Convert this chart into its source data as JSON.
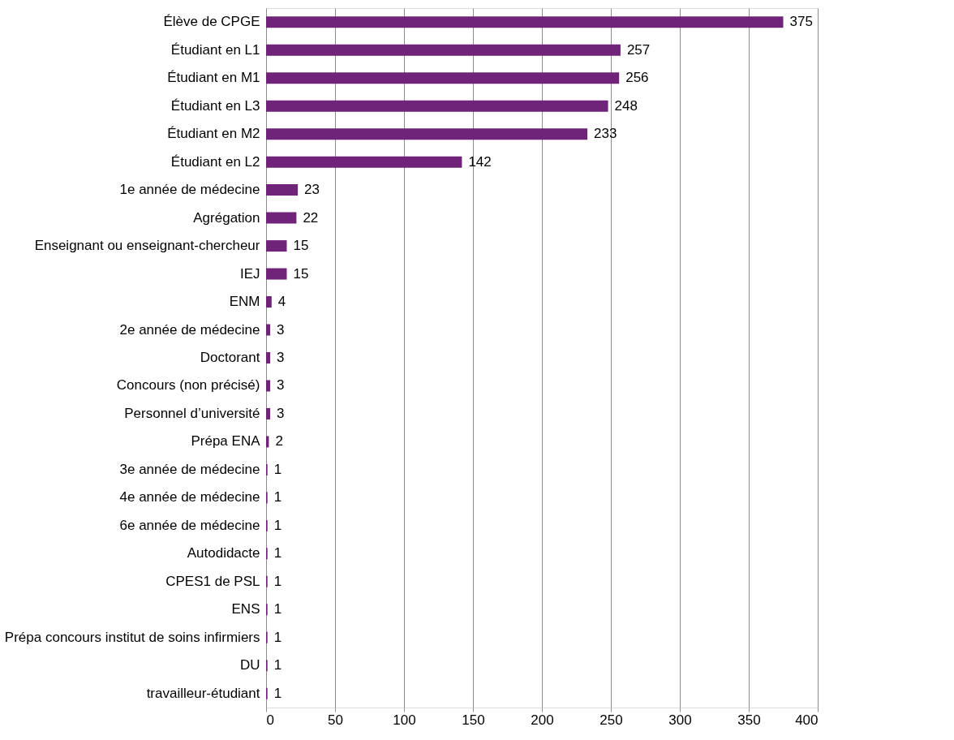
{
  "chart_data": {
    "type": "bar",
    "orientation": "horizontal",
    "categories": [
      "Élève de CPGE",
      "Étudiant en L1",
      "Étudiant en M1",
      "Étudiant en L3",
      "Étudiant en M2",
      "Étudiant en L2",
      "1e année de médecine",
      "Agrégation",
      "Enseignant ou enseignant-chercheur",
      "IEJ",
      "ENM",
      "2e année de médecine",
      "Doctorant",
      "Concours (non précisé)",
      "Personnel d’université",
      "Prépa ENA",
      "3e année de médecine",
      "4e année de médecine",
      "6e année de médecine",
      "Autodidacte",
      "CPES1 de PSL",
      "ENS",
      "Prépa concours institut de soins infirmiers",
      "DU",
      "travailleur-étudiant"
    ],
    "values": [
      375,
      257,
      256,
      248,
      233,
      142,
      23,
      22,
      15,
      15,
      4,
      3,
      3,
      3,
      3,
      2,
      1,
      1,
      1,
      1,
      1,
      1,
      1,
      1,
      1
    ],
    "color": "#6f2479",
    "xlim": [
      0,
      400
    ],
    "xticks": [
      0,
      50,
      100,
      150,
      200,
      250,
      300,
      350,
      400
    ],
    "grid": "x",
    "data_labels": true
  }
}
